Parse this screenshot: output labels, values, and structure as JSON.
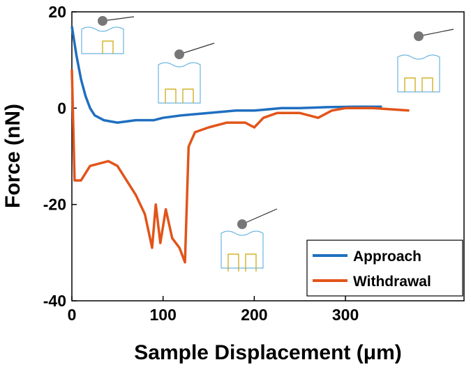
{
  "chart_data": {
    "type": "line",
    "xlabel": "Sample Displacement (μm)",
    "ylabel": "Force (nN)",
    "xlim": [
      0,
      430
    ],
    "ylim": [
      -40,
      20
    ],
    "xticks": [
      0,
      100,
      200,
      300
    ],
    "yticks": [
      -40,
      -20,
      0,
      20
    ],
    "legend": "lower right",
    "series": [
      {
        "name": "Approach",
        "color": "#1f6fc0",
        "x": [
          0,
          5,
          10,
          15,
          20,
          25,
          35,
          50,
          70,
          90,
          100,
          120,
          150,
          180,
          200,
          230,
          250,
          280,
          310,
          340
        ],
        "values": [
          17,
          11,
          6,
          2.5,
          0,
          -1.5,
          -2.5,
          -3,
          -2.5,
          -2.5,
          -2,
          -1.5,
          -1,
          -0.5,
          -0.5,
          0,
          0,
          0.2,
          0.3,
          0.3
        ]
      },
      {
        "name": "Withdrawal",
        "color": "#e2541a",
        "x": [
          0,
          3,
          10,
          20,
          40,
          50,
          60,
          70,
          80,
          88,
          92,
          97,
          103,
          110,
          118,
          124,
          128,
          135,
          150,
          170,
          190,
          200,
          210,
          225,
          250,
          270,
          285,
          300,
          330,
          370
        ],
        "values": [
          8,
          -15,
          -15,
          -12,
          -11,
          -12,
          -15,
          -18,
          -22,
          -29,
          -20,
          -28,
          -21,
          -27,
          -29,
          -32,
          -8,
          -5,
          -4,
          -3,
          -3,
          -4,
          -2,
          -1,
          -1,
          -2,
          -0.5,
          0,
          0,
          -0.5
        ]
      }
    ]
  }
}
